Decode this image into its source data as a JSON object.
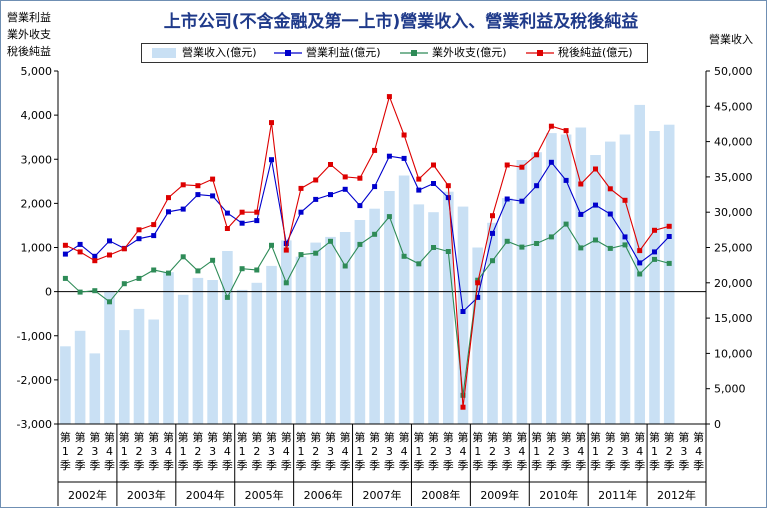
{
  "chart_data": {
    "type": "bar+line",
    "title": "上市公司(不含金融及第一上市)營業收入、營業利益及稅後純益",
    "ylabel_left": [
      "營業利益",
      "業外收支",
      "稅後純益"
    ],
    "ylabel_right": "營業收入",
    "ylim_left": [
      -3000,
      5000
    ],
    "ylim_right": [
      0,
      50000
    ],
    "yticks_left": [
      "5,000",
      "4,000",
      "3,000",
      "2,000",
      "1,000",
      "0",
      "-1,000",
      "-2,000",
      "-3,000"
    ],
    "yticks_right": [
      "50,000",
      "45,000",
      "40,000",
      "35,000",
      "30,000",
      "25,000",
      "20,000",
      "15,000",
      "10,000",
      "5,000",
      "0"
    ],
    "quarter_chars": [
      "第",
      "季"
    ],
    "quarter_nums": [
      "1",
      "2",
      "3",
      "4"
    ],
    "years": [
      "2002年",
      "2003年",
      "2004年",
      "2005年",
      "2006年",
      "2007年",
      "2008年",
      "2009年",
      "2010年",
      "2011年",
      "2012年"
    ],
    "grid": false,
    "legend_position": "top",
    "series": [
      {
        "name": "營業收入(億元)",
        "axis": "right",
        "style": "bar",
        "color": "#c9e0f4",
        "values": [
          11000,
          13200,
          10000,
          18800,
          13300,
          16300,
          14800,
          21500,
          18300,
          20700,
          20400,
          24500,
          19000,
          20000,
          22400,
          26000,
          23700,
          25700,
          26500,
          27200,
          28900,
          30500,
          33000,
          35200,
          31100,
          30000,
          32900,
          30800,
          25000,
          28500,
          32000,
          37400,
          38500,
          41200,
          41000,
          42000,
          38100,
          40000,
          41000,
          45200,
          41500,
          42400,
          null,
          null
        ]
      },
      {
        "name": "營業利益(億元)",
        "axis": "left",
        "style": "line",
        "color": "#0000cc",
        "values": [
          850,
          1070,
          800,
          1150,
          980,
          1200,
          1270,
          1810,
          1870,
          2200,
          2170,
          1780,
          1550,
          1610,
          2990,
          1090,
          1800,
          2090,
          2200,
          2320,
          1950,
          2380,
          3070,
          3020,
          2300,
          2450,
          2130,
          -450,
          -130,
          1320,
          2100,
          2050,
          2400,
          2930,
          2520,
          1750,
          1960,
          1760,
          1240,
          650,
          900,
          1250,
          null,
          null
        ]
      },
      {
        "name": "業外收支(億元)",
        "axis": "left",
        "style": "line",
        "color": "#2e8b57",
        "values": [
          300,
          -10,
          20,
          -230,
          180,
          300,
          490,
          420,
          790,
          470,
          710,
          -130,
          520,
          490,
          1050,
          200,
          840,
          870,
          1140,
          580,
          1070,
          1300,
          1700,
          800,
          630,
          1000,
          910,
          -2350,
          260,
          700,
          1140,
          1010,
          1090,
          1240,
          1530,
          990,
          1170,
          980,
          1060,
          400,
          730,
          640,
          null,
          null
        ]
      },
      {
        "name": "稅後純益(億元)",
        "axis": "left",
        "style": "line",
        "color": "#dd0000",
        "values": [
          1050,
          900,
          700,
          830,
          970,
          1400,
          1520,
          2130,
          2420,
          2400,
          2550,
          1430,
          1800,
          1800,
          3830,
          940,
          2340,
          2530,
          2880,
          2600,
          2570,
          3200,
          4420,
          3550,
          2550,
          2870,
          2400,
          -2620,
          200,
          1720,
          2870,
          2820,
          3100,
          3750,
          3650,
          2440,
          2780,
          2330,
          2070,
          930,
          1390,
          1480,
          null,
          null
        ]
      }
    ]
  }
}
